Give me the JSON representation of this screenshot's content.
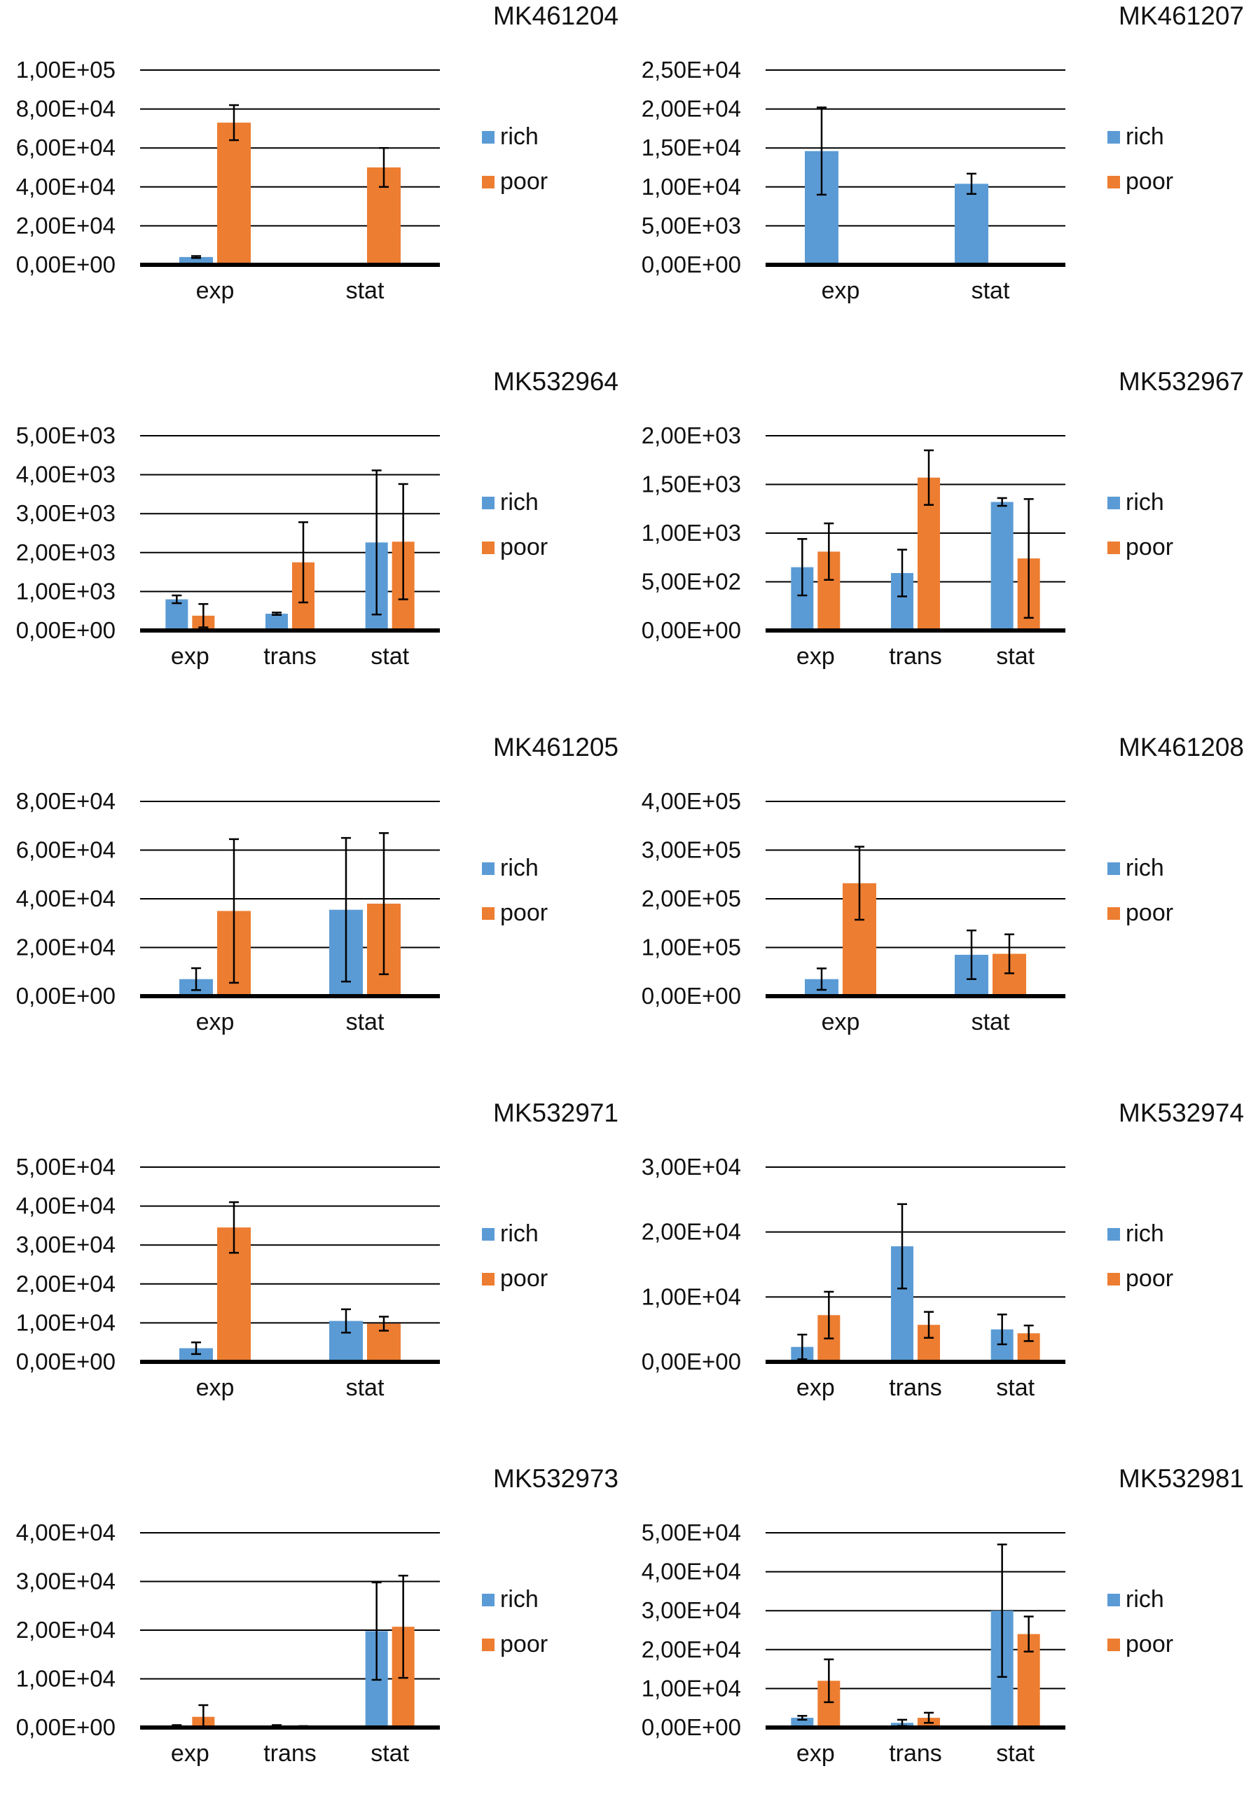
{
  "colors": {
    "rich": "#5b9bd5",
    "poor": "#ed7d31",
    "axis": "#000000",
    "grid": "#000000"
  },
  "chart_data": [
    {
      "type": "bar",
      "title": "MK461204",
      "categories": [
        "exp",
        "stat"
      ],
      "ylim": [
        0,
        100000
      ],
      "ticks": [
        0,
        20000,
        40000,
        60000,
        80000,
        100000
      ],
      "tick_labels": [
        "0,00E+00",
        "2,00E+04",
        "4,00E+04",
        "6,00E+04",
        "8,00E+04",
        "1,00E+05"
      ],
      "series": [
        {
          "name": "rich",
          "values": [
            4000,
            0
          ],
          "errors": [
            500,
            0
          ]
        },
        {
          "name": "poor",
          "values": [
            73000,
            50000
          ],
          "errors": [
            9000,
            10000
          ]
        }
      ]
    },
    {
      "type": "bar",
      "title": "MK461207",
      "categories": [
        "exp",
        "stat"
      ],
      "ylim": [
        0,
        25000
      ],
      "ticks": [
        0,
        5000,
        10000,
        15000,
        20000,
        25000
      ],
      "tick_labels": [
        "0,00E+00",
        "5,00E+03",
        "1,00E+04",
        "1,50E+04",
        "2,00E+04",
        "2,50E+04"
      ],
      "series": [
        {
          "name": "rich",
          "values": [
            14600,
            10400
          ],
          "errors": [
            5600,
            1300
          ]
        },
        {
          "name": "poor",
          "values": [
            150,
            150
          ],
          "errors": [
            0,
            0
          ]
        }
      ]
    },
    {
      "type": "bar",
      "title": "MK532964",
      "categories": [
        "exp",
        "trans",
        "stat"
      ],
      "ylim": [
        0,
        5000
      ],
      "ticks": [
        0,
        1000,
        2000,
        3000,
        4000,
        5000
      ],
      "tick_labels": [
        "0,00E+00",
        "1,00E+03",
        "2,00E+03",
        "3,00E+03",
        "4,00E+03",
        "5,00E+03"
      ],
      "series": [
        {
          "name": "rich",
          "values": [
            800,
            430,
            2260
          ],
          "errors": [
            100,
            30,
            1850
          ]
        },
        {
          "name": "poor",
          "values": [
            380,
            1750,
            2280
          ],
          "errors": [
            300,
            1030,
            1480
          ]
        }
      ]
    },
    {
      "type": "bar",
      "title": "MK532967",
      "categories": [
        "exp",
        "trans",
        "stat"
      ],
      "ylim": [
        0,
        2000
      ],
      "ticks": [
        0,
        500,
        1000,
        1500,
        2000
      ],
      "tick_labels": [
        "0,00E+00",
        "5,00E+02",
        "1,00E+03",
        "1,50E+03",
        "2,00E+03"
      ],
      "series": [
        {
          "name": "rich",
          "values": [
            650,
            590,
            1320
          ],
          "errors": [
            290,
            240,
            40
          ]
        },
        {
          "name": "poor",
          "values": [
            810,
            1570,
            740
          ],
          "errors": [
            290,
            280,
            610
          ]
        }
      ]
    },
    {
      "type": "bar",
      "title": "MK461205",
      "categories": [
        "exp",
        "stat"
      ],
      "ylim": [
        0,
        80000
      ],
      "ticks": [
        0,
        20000,
        40000,
        60000,
        80000
      ],
      "tick_labels": [
        "0,00E+00",
        "2,00E+04",
        "4,00E+04",
        "6,00E+04",
        "8,00E+04"
      ],
      "series": [
        {
          "name": "rich",
          "values": [
            7000,
            35500
          ],
          "errors": [
            4500,
            29500
          ]
        },
        {
          "name": "poor",
          "values": [
            35000,
            38000
          ],
          "errors": [
            29500,
            29000
          ]
        }
      ]
    },
    {
      "type": "bar",
      "title": "MK461208",
      "categories": [
        "exp",
        "stat"
      ],
      "ylim": [
        0,
        400000
      ],
      "ticks": [
        0,
        100000,
        200000,
        300000,
        400000
      ],
      "tick_labels": [
        "0,00E+00",
        "1,00E+05",
        "2,00E+05",
        "3,00E+05",
        "4,00E+05"
      ],
      "series": [
        {
          "name": "rich",
          "values": [
            35000,
            85000
          ],
          "errors": [
            22000,
            50000
          ]
        },
        {
          "name": "poor",
          "values": [
            232000,
            87000
          ],
          "errors": [
            75000,
            40000
          ]
        }
      ]
    },
    {
      "type": "bar",
      "title": "MK532971",
      "categories": [
        "exp",
        "stat"
      ],
      "ylim": [
        0,
        50000
      ],
      "ticks": [
        0,
        10000,
        20000,
        30000,
        40000,
        50000
      ],
      "tick_labels": [
        "0,00E+00",
        "1,00E+04",
        "2,00E+04",
        "3,00E+04",
        "4,00E+04",
        "5,00E+04"
      ],
      "series": [
        {
          "name": "rich",
          "values": [
            3500,
            10500
          ],
          "errors": [
            1500,
            3000
          ]
        },
        {
          "name": "poor",
          "values": [
            34500,
            9800
          ],
          "errors": [
            6500,
            1800
          ]
        }
      ]
    },
    {
      "type": "bar",
      "title": "MK532974",
      "categories": [
        "exp",
        "trans",
        "stat"
      ],
      "ylim": [
        0,
        30000
      ],
      "ticks": [
        0,
        10000,
        20000,
        30000
      ],
      "tick_labels": [
        "0,00E+00",
        "1,00E+04",
        "2,00E+04",
        "3,00E+04"
      ],
      "series": [
        {
          "name": "rich",
          "values": [
            2300,
            17800,
            5000
          ],
          "errors": [
            1900,
            6500,
            2300
          ]
        },
        {
          "name": "poor",
          "values": [
            7200,
            5700,
            4400
          ],
          "errors": [
            3600,
            2000,
            1200
          ]
        }
      ]
    },
    {
      "type": "bar",
      "title": "MK532973",
      "categories": [
        "exp",
        "trans",
        "stat"
      ],
      "ylim": [
        0,
        40000
      ],
      "ticks": [
        0,
        10000,
        20000,
        30000,
        40000
      ],
      "tick_labels": [
        "0,00E+00",
        "1,00E+04",
        "2,00E+04",
        "3,00E+04",
        "4,00E+04"
      ],
      "series": [
        {
          "name": "rich",
          "values": [
            300,
            300,
            19800
          ],
          "errors": [
            200,
            200,
            10000
          ]
        },
        {
          "name": "poor",
          "values": [
            2200,
            200,
            20700
          ],
          "errors": [
            2400,
            100,
            10500
          ]
        }
      ]
    },
    {
      "type": "bar",
      "title": "MK532981",
      "categories": [
        "exp",
        "trans",
        "stat"
      ],
      "ylim": [
        0,
        50000
      ],
      "ticks": [
        0,
        10000,
        20000,
        30000,
        40000,
        50000
      ],
      "tick_labels": [
        "0,00E+00",
        "1,00E+04",
        "2,00E+04",
        "3,00E+04",
        "4,00E+04",
        "5,00E+04"
      ],
      "series": [
        {
          "name": "rich",
          "values": [
            2500,
            1200,
            30000
          ],
          "errors": [
            500,
            800,
            17000
          ]
        },
        {
          "name": "poor",
          "values": [
            12000,
            2500,
            24000
          ],
          "errors": [
            5500,
            1300,
            4500
          ]
        }
      ]
    }
  ]
}
